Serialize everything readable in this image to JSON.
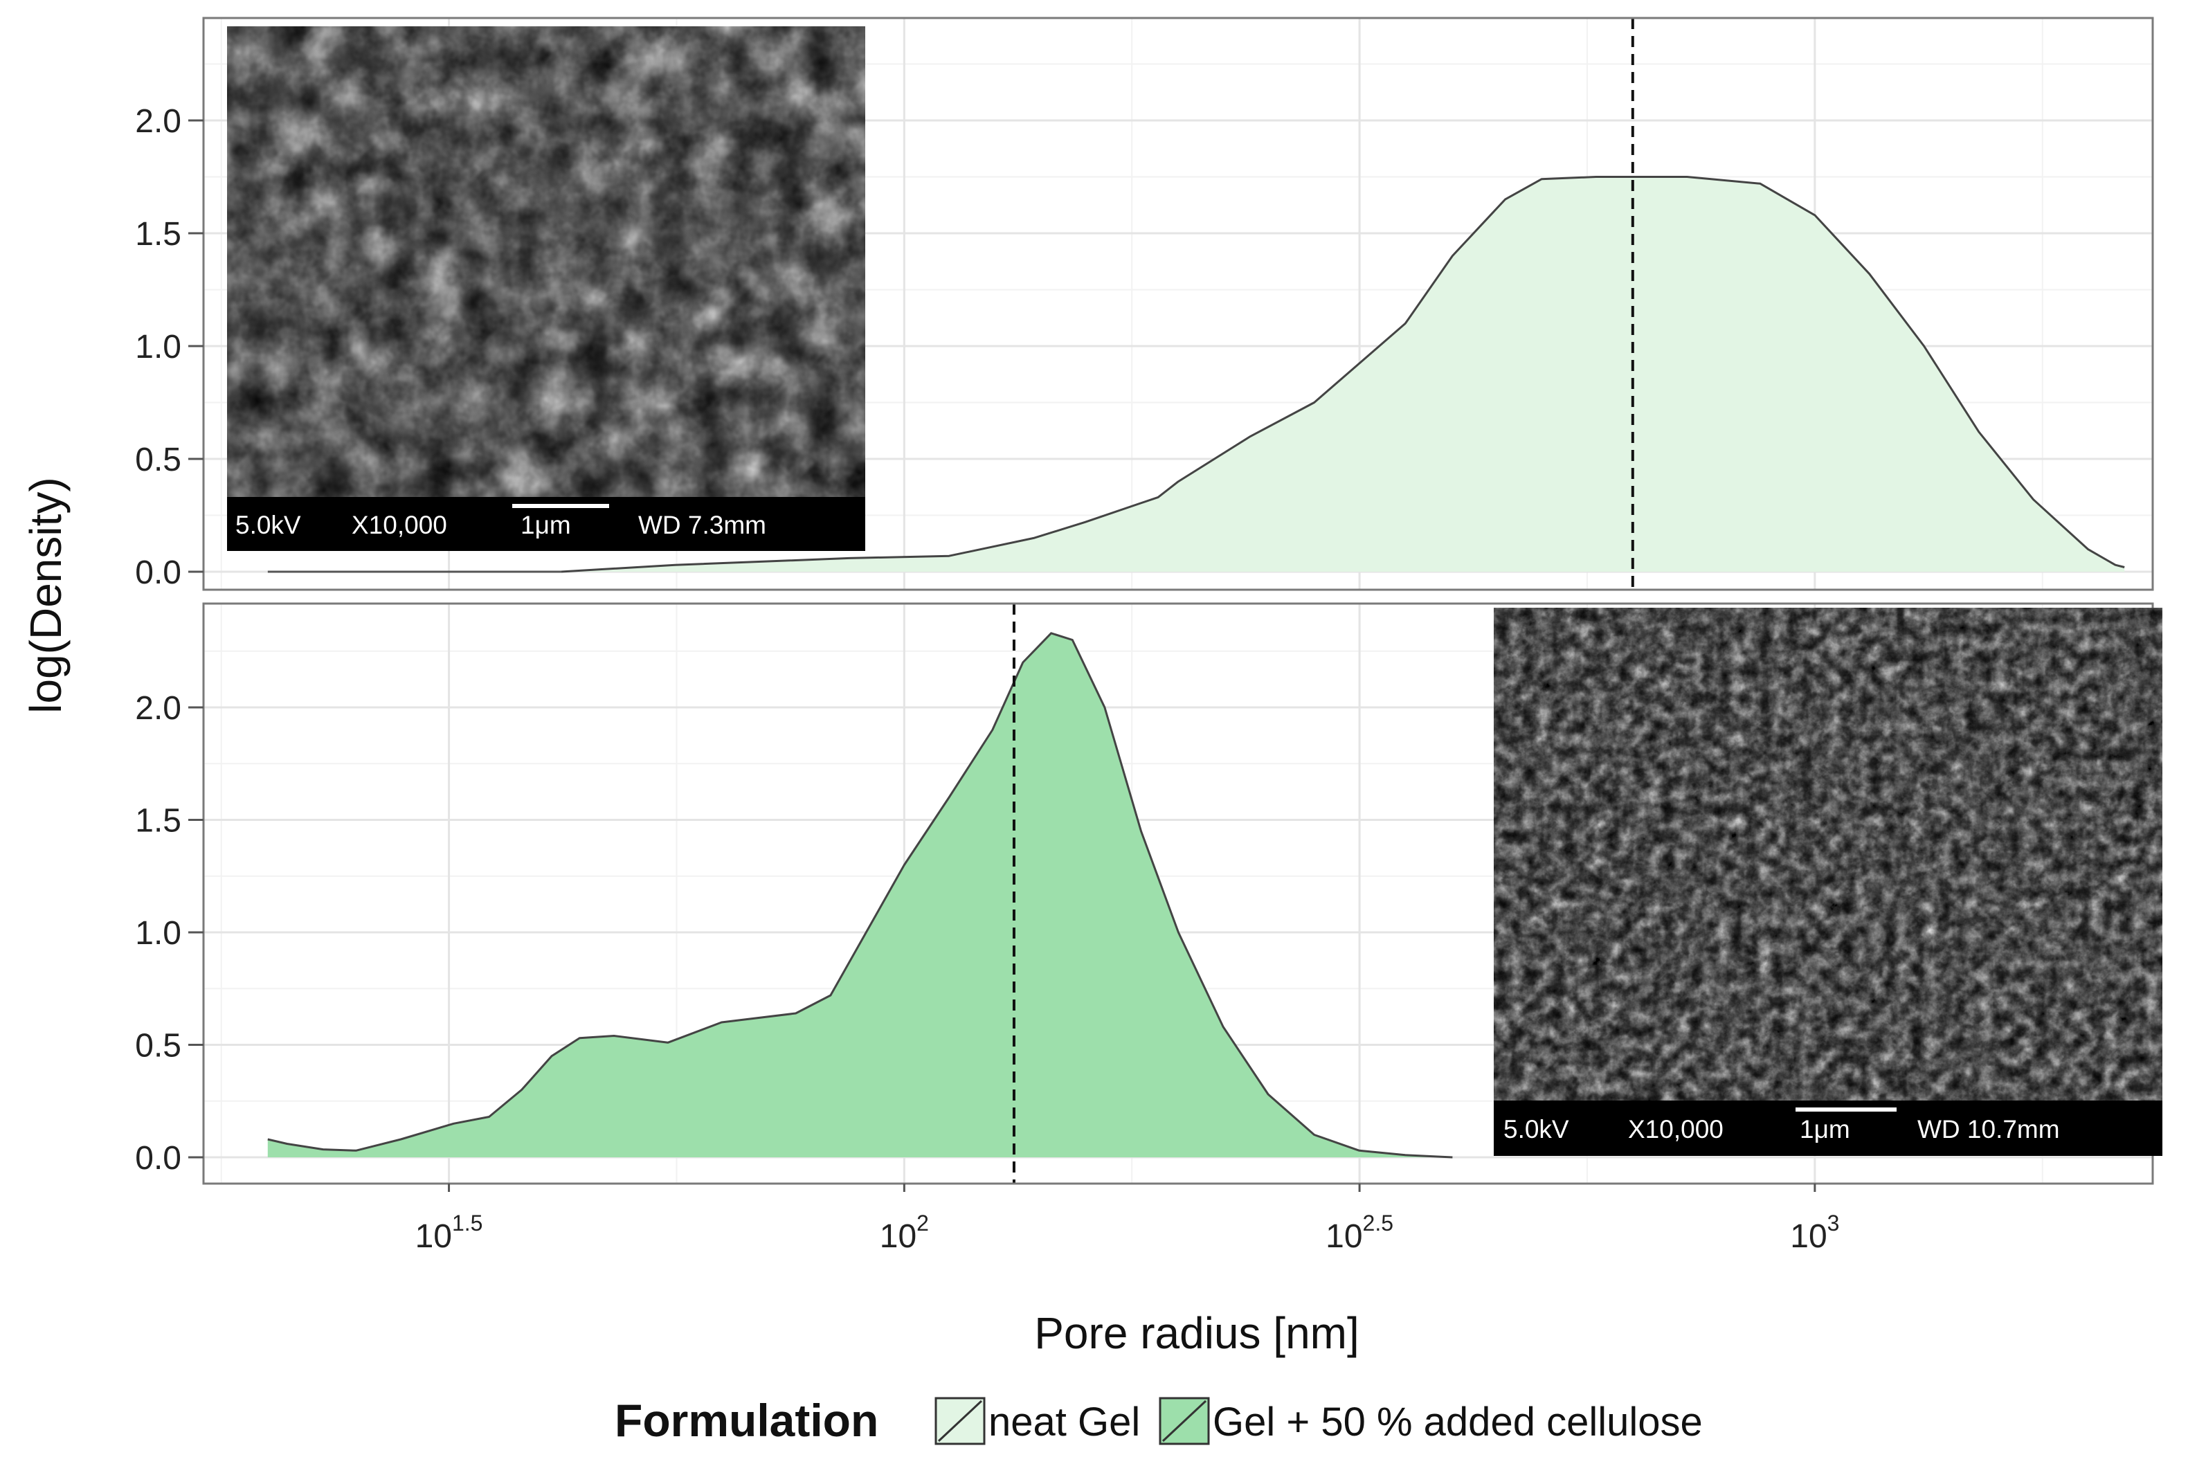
{
  "chart_data": {
    "type": "area",
    "x_scale": "log10",
    "xlabel": "Pore radius [nm]",
    "ylabel": "log(Density)",
    "xlim": [
      17,
      2350
    ],
    "ylim": [
      -0.1,
      2.4
    ],
    "x_ticks": [
      {
        "base": "10",
        "exp": "1.5",
        "value": 31.62
      },
      {
        "base": "10",
        "exp": "2",
        "value": 100
      },
      {
        "base": "10",
        "exp": "2.5",
        "value": 316.23
      },
      {
        "base": "10",
        "exp": "3",
        "value": 1000
      }
    ],
    "y_ticks": [
      "0.0",
      "0.5",
      "1.0",
      "1.5",
      "2.0"
    ],
    "y_tick_values": [
      0,
      0.5,
      1.0,
      1.5,
      2.0
    ],
    "grid": true,
    "legend": {
      "title": "Formulation",
      "position": "bottom",
      "entries": [
        "neat Gel",
        "Gel + 50 % added cellulose"
      ]
    },
    "panels": [
      {
        "series": "neat Gel",
        "fill": "#e2f5e4",
        "baseline_segment": {
          "x": [
            20,
            42
          ],
          "y": 0.0
        },
        "vline_x": 631,
        "points": [
          [
            42,
            0.0
          ],
          [
            56,
            0.03
          ],
          [
            70,
            0.045
          ],
          [
            87,
            0.06
          ],
          [
            112,
            0.07
          ],
          [
            139,
            0.15
          ],
          [
            158,
            0.22
          ],
          [
            190,
            0.33
          ],
          [
            200,
            0.4
          ],
          [
            240,
            0.6
          ],
          [
            282,
            0.75
          ],
          [
            355,
            1.1
          ],
          [
            400,
            1.4
          ],
          [
            457,
            1.65
          ],
          [
            501,
            1.74
          ],
          [
            575,
            1.75
          ],
          [
            724,
            1.75
          ],
          [
            871,
            1.72
          ],
          [
            1000,
            1.58
          ],
          [
            1148,
            1.32
          ],
          [
            1318,
            1.0
          ],
          [
            1514,
            0.62
          ],
          [
            1738,
            0.32
          ],
          [
            1995,
            0.1
          ],
          [
            2138,
            0.03
          ],
          [
            2188,
            0.02
          ]
        ],
        "image": {
          "name": "sem-neat",
          "kv": "5.0kV",
          "mag": "X10,000",
          "scale": "1μm",
          "wd": "WD 7.3mm"
        }
      },
      {
        "series": "Gel + 50 % added cellulose",
        "fill": "#9ddfab",
        "vline_x": 132,
        "points": [
          [
            20,
            0.08
          ],
          [
            21,
            0.06
          ],
          [
            23,
            0.035
          ],
          [
            25,
            0.03
          ],
          [
            28,
            0.08
          ],
          [
            32,
            0.15
          ],
          [
            35,
            0.18
          ],
          [
            38,
            0.3
          ],
          [
            41,
            0.45
          ],
          [
            44,
            0.53
          ],
          [
            48,
            0.54
          ],
          [
            55,
            0.51
          ],
          [
            63,
            0.6
          ],
          [
            76,
            0.64
          ],
          [
            83,
            0.72
          ],
          [
            100,
            1.3
          ],
          [
            112,
            1.6
          ],
          [
            125,
            1.9
          ],
          [
            135,
            2.2
          ],
          [
            145,
            2.33
          ],
          [
            153,
            2.3
          ],
          [
            166,
            2.0
          ],
          [
            182,
            1.45
          ],
          [
            200,
            1.0
          ],
          [
            224,
            0.58
          ],
          [
            251,
            0.28
          ],
          [
            282,
            0.1
          ],
          [
            316,
            0.03
          ],
          [
            355,
            0.01
          ],
          [
            400,
            0.0
          ]
        ],
        "image": {
          "name": "sem-cellulose",
          "kv": "5.0kV",
          "mag": "X10,000",
          "scale": "1μm",
          "wd": "WD 10.7mm"
        }
      }
    ]
  }
}
